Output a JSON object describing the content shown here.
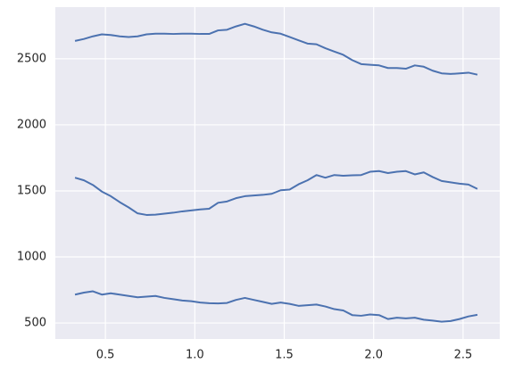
{
  "chart_data": {
    "type": "line",
    "grid": true,
    "x": [
      0.33,
      0.38,
      0.43,
      0.48,
      0.53,
      0.58,
      0.63,
      0.68,
      0.73,
      0.78,
      0.83,
      0.88,
      0.93,
      0.98,
      1.03,
      1.08,
      1.13,
      1.18,
      1.23,
      1.28,
      1.33,
      1.38,
      1.43,
      1.48,
      1.53,
      1.58,
      1.63,
      1.68,
      1.73,
      1.78,
      1.83,
      1.88,
      1.93,
      1.98,
      2.03,
      2.08,
      2.13,
      2.18,
      2.23,
      2.28,
      2.33,
      2.38,
      2.43,
      2.48,
      2.53,
      2.58
    ],
    "series": [
      {
        "color": "#4c72b0",
        "values": [
          2635,
          2650,
          2670,
          2685,
          2680,
          2670,
          2665,
          2670,
          2685,
          2690,
          2690,
          2688,
          2690,
          2690,
          2688,
          2688,
          2715,
          2720,
          2745,
          2765,
          2745,
          2720,
          2700,
          2690,
          2665,
          2640,
          2615,
          2610,
          2580,
          2555,
          2530,
          2490,
          2460,
          2455,
          2450,
          2430,
          2430,
          2425,
          2450,
          2440,
          2410,
          2390,
          2385,
          2390,
          2395,
          2380
        ]
      },
      {
        "color": "#4c72b0",
        "values": [
          1600,
          1580,
          1545,
          1495,
          1460,
          1415,
          1375,
          1330,
          1318,
          1320,
          1328,
          1335,
          1345,
          1352,
          1360,
          1365,
          1410,
          1420,
          1445,
          1460,
          1465,
          1470,
          1478,
          1505,
          1510,
          1550,
          1580,
          1620,
          1600,
          1620,
          1615,
          1618,
          1620,
          1645,
          1650,
          1635,
          1645,
          1650,
          1625,
          1640,
          1605,
          1575,
          1565,
          1555,
          1548,
          1515
        ]
      },
      {
        "color": "#4c72b0",
        "values": [
          715,
          730,
          740,
          715,
          725,
          715,
          705,
          695,
          700,
          705,
          690,
          680,
          670,
          665,
          655,
          650,
          648,
          652,
          675,
          690,
          675,
          660,
          645,
          655,
          645,
          630,
          635,
          640,
          625,
          605,
          595,
          560,
          555,
          565,
          560,
          530,
          540,
          535,
          540,
          525,
          518,
          510,
          515,
          530,
          550,
          562
        ]
      }
    ],
    "xlim": [
      0.22,
      2.705
    ],
    "xticks": [
      0.5,
      {
        "value": 1,
        "label": "1.0"
      },
      1.5,
      {
        "value": 2,
        "label": "2.0"
      },
      2.5
    ],
    "ylim": [
      379,
      2891
    ],
    "yticks": [
      500,
      1000,
      1500,
      2000,
      2500
    ]
  }
}
